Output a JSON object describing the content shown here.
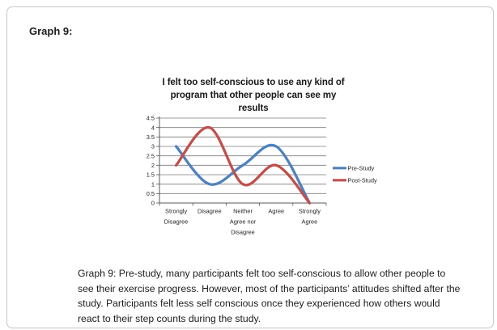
{
  "page": {
    "heading": "Graph 9:",
    "caption": "Graph 9: Pre-study, many participants felt too self-conscious to allow other people to see their exercise progress. However, most of the participants’ attitudes shifted after the study. Participants felt less self conscious once they experienced how others would react to their step counts during the study."
  },
  "chart_data": {
    "type": "line",
    "smooth": true,
    "title": "I felt too self-conscious to use any kind of program that other people can see my results",
    "title_lines": [
      "I felt too self-conscious to use any kind of",
      "program that other people can see my",
      "results"
    ],
    "categories": [
      "Strongly Disagree",
      "Disagree",
      "Neither Agree nor Disagree",
      "Agree",
      "Strongly Agree"
    ],
    "series": [
      {
        "name": "Pre-Study",
        "color": "#4F81BD",
        "values": [
          3,
          1,
          2,
          3,
          0
        ]
      },
      {
        "name": "Post-Study",
        "color": "#C0504D",
        "values": [
          2,
          4,
          1,
          2,
          0
        ]
      }
    ],
    "ylim": [
      0,
      4.5
    ],
    "ytick_step": 0.5,
    "yticklabels": [
      "0",
      "0.5",
      "1",
      "1.5",
      "2",
      "2.5",
      "3",
      "3.5",
      "4",
      "4.5"
    ],
    "xlabel": "",
    "ylabel": "",
    "grid": true,
    "legend_position": "right",
    "gridline_color": "#7b7b7b",
    "axis_color": "#595959",
    "label_color": "#1f1f1f"
  }
}
